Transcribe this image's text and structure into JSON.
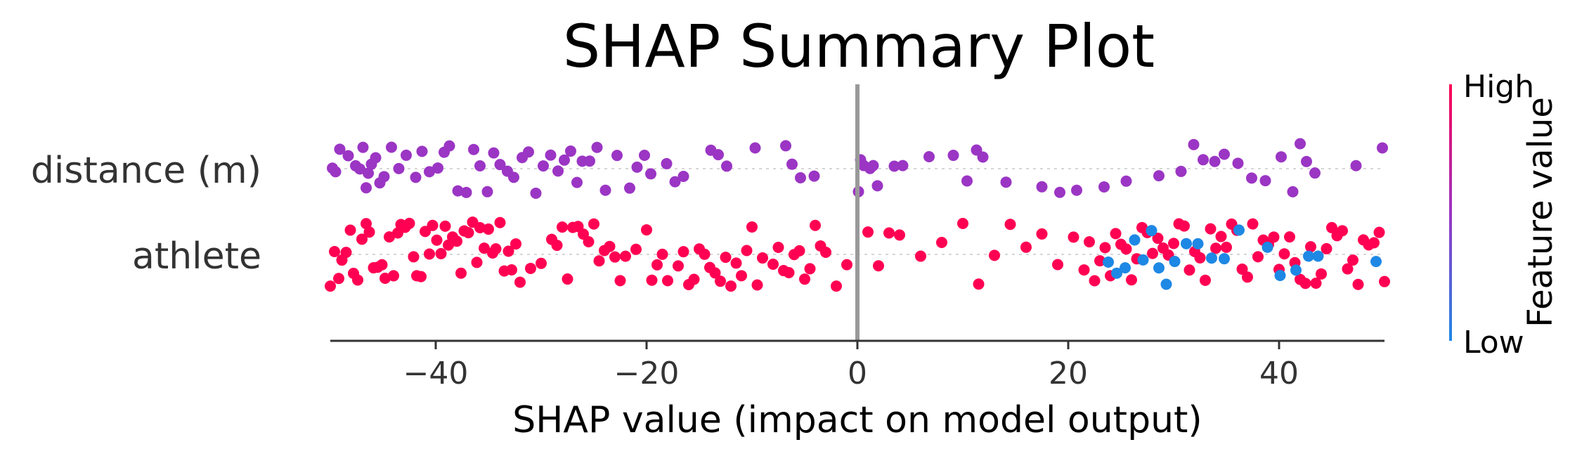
{
  "chart_data": {
    "type": "scatter",
    "title": "SHAP Summary Plot",
    "xlabel": "SHAP value (impact on model output)",
    "xlim": [
      -50,
      50
    ],
    "xticks": [
      {
        "value": -40,
        "label": "−40"
      },
      {
        "value": -20,
        "label": "−20"
      },
      {
        "value": 0,
        "label": "0"
      },
      {
        "value": 20,
        "label": "20"
      },
      {
        "value": 40,
        "label": "40"
      }
    ],
    "features": [
      "distance (m)",
      "athlete"
    ],
    "colorbar": {
      "title": "Feature value",
      "high_label": "High",
      "low_label": "Low"
    },
    "colors": {
      "high": "#ff0052",
      "low": "#1e88e5",
      "mid": "#9b35c4",
      "zero_line": "#999999"
    },
    "series": [
      {
        "feature": "distance (m)",
        "color_group": "mid",
        "values": [
          -49.8,
          -49.5,
          -49.1,
          -48.3,
          -47.6,
          -47.2,
          -46.9,
          -46.6,
          -46.4,
          -46.1,
          -45.7,
          -45.3,
          -44.9,
          -44.2,
          -43.5,
          -42.8,
          -41.9,
          -41.3,
          -40.6,
          -39.8,
          -39.2,
          -38.7,
          -37.9,
          -37.1,
          -36.4,
          -35.8,
          -35.1,
          -34.5,
          -33.9,
          -33.2,
          -32.6,
          -31.8,
          -31.2,
          -30.5,
          -29.8,
          -29.1,
          -28.4,
          -27.8,
          -27.2,
          -26.6,
          -26.1,
          -25.4,
          -24.7,
          -23.9,
          -22.8,
          -21.6,
          -20.9,
          -20.2,
          -19.6,
          -18.1,
          -17.3,
          -16.5,
          -13.9,
          -13.2,
          -12.4,
          -9.7,
          -6.8,
          -6.2,
          -5.4,
          -4.1,
          0.1,
          0.3,
          0.6,
          1.2,
          1.5,
          1.9,
          3.5,
          4.3,
          6.8,
          9.1,
          10.4,
          11.3,
          11.9,
          14.1,
          17.5,
          19.2,
          20.8,
          23.4,
          25.5,
          28.6,
          30.7,
          31.9,
          32.8,
          33.9,
          34.8,
          36.1,
          37.4,
          38.7,
          40.2,
          41.3,
          42.0,
          42.6,
          43.4,
          47.3,
          49.8
        ]
      },
      {
        "feature": "athlete",
        "color_group": "high",
        "values": [
          -50.0,
          -49.6,
          -49.2,
          -48.9,
          -48.5,
          -48.1,
          -47.8,
          -47.4,
          -47.0,
          -46.6,
          -46.3,
          -45.9,
          -45.5,
          -45.1,
          -44.8,
          -44.4,
          -44.0,
          -43.6,
          -43.3,
          -42.9,
          -42.5,
          -42.1,
          -41.8,
          -41.4,
          -41.0,
          -40.6,
          -40.3,
          -39.9,
          -39.5,
          -39.1,
          -38.8,
          -38.4,
          -38.0,
          -37.6,
          -37.3,
          -36.9,
          -36.5,
          -36.1,
          -35.8,
          -35.4,
          -35.0,
          -34.6,
          -34.3,
          -33.9,
          -33.5,
          -33.1,
          -32.8,
          -32.4,
          -32.0,
          -31.0,
          -30.0,
          -29.0,
          -28.5,
          -28.0,
          -27.5,
          -27.0,
          -26.5,
          -26.0,
          -25.5,
          -25.0,
          -24.5,
          -24.0,
          -23.5,
          -23.0,
          -22.5,
          -22.0,
          -21.0,
          -20.0,
          -19.5,
          -19.0,
          -18.5,
          -18.0,
          -17.0,
          -16.5,
          -16.0,
          -15.5,
          -15.0,
          -14.5,
          -14.0,
          -13.5,
          -13.0,
          -12.5,
          -12.0,
          -11.5,
          -11.0,
          -10.5,
          -10.0,
          -9.5,
          -9.0,
          -8.0,
          -7.5,
          -7.0,
          -6.5,
          -6.0,
          -5.5,
          -5.0,
          -4.5,
          -4.0,
          -3.5,
          -3.0,
          -2.0,
          -1.0,
          1.0,
          2.0,
          3.0,
          4.0,
          6.0,
          8.0,
          10.0,
          11.5,
          13.0,
          14.5,
          16.0,
          17.5,
          19.0,
          20.5,
          21.5,
          22.0,
          22.5,
          23.0,
          23.5,
          24.0,
          24.5,
          25.0,
          25.5,
          26.0,
          26.5,
          27.0,
          27.5,
          28.0,
          28.5,
          29.0,
          29.5,
          30.0,
          30.5,
          31.0,
          31.5,
          32.0,
          32.5,
          33.0,
          33.5,
          34.0,
          34.5,
          35.0,
          35.5,
          36.0,
          36.5,
          37.0,
          37.5,
          38.0,
          38.5,
          39.0,
          39.5,
          40.0,
          40.5,
          41.0,
          41.5,
          42.0,
          42.5,
          43.0,
          43.5,
          44.0,
          44.5,
          45.0,
          45.5,
          46.0,
          46.5,
          47.0,
          47.5,
          48.0,
          48.5,
          49.0,
          49.5,
          50.0
        ]
      },
      {
        "feature": "athlete",
        "color_group": "low",
        "values": [
          23.8,
          24.6,
          25.4,
          26.3,
          27.1,
          27.9,
          28.6,
          29.3,
          30.1,
          31.2,
          32.3,
          33.6,
          34.8,
          36.2,
          38.9,
          40.1,
          41.6,
          42.8,
          43.7,
          49.2
        ]
      }
    ]
  }
}
